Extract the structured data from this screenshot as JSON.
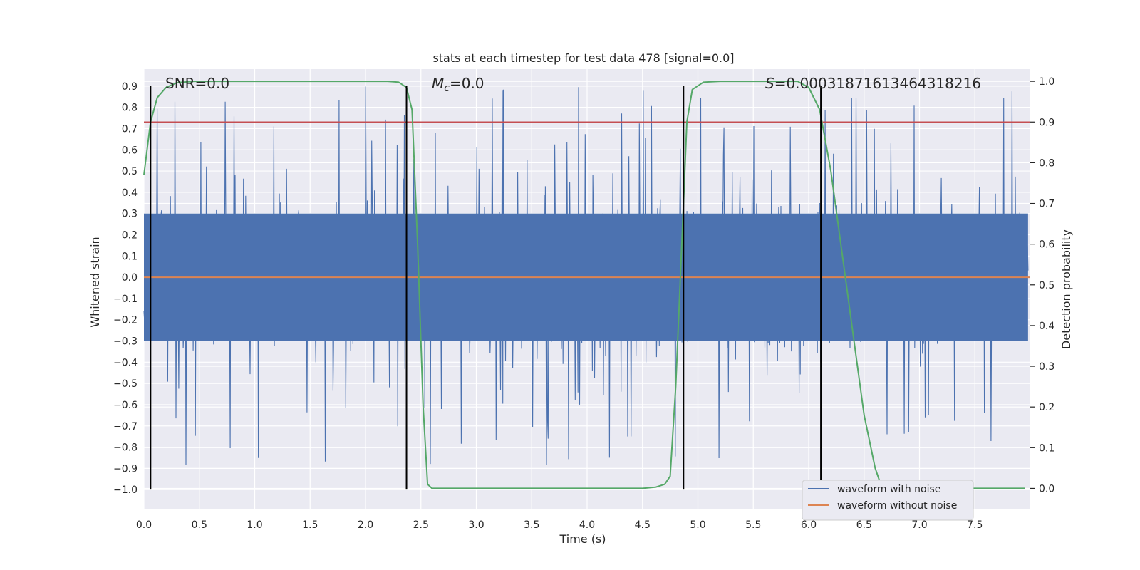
{
  "chart_data": {
    "type": "line",
    "title": "stats at each timestep for test data 478 [signal=0.0]",
    "xlabel": "Time (s)",
    "ylabel": "Whitened strain",
    "ylabel_right": "Detection probability",
    "xlim": [
      0.0,
      8.0
    ],
    "ylim": [
      -1.09,
      0.98
    ],
    "ylim_right": [
      -0.05,
      1.03
    ],
    "x_ticks": [
      0.0,
      0.5,
      1.0,
      1.5,
      2.0,
      2.5,
      3.0,
      3.5,
      4.0,
      4.5,
      5.0,
      5.5,
      6.0,
      6.5,
      7.0,
      7.5
    ],
    "x_tick_labels": [
      "0.0",
      "0.5",
      "1.0",
      "1.5",
      "2.0",
      "2.5",
      "3.0",
      "3.5",
      "4.0",
      "4.5",
      "5.0",
      "5.5",
      "6.0",
      "6.5",
      "7.0",
      "7.5"
    ],
    "y_ticks": [
      0.9,
      0.8,
      0.7,
      0.6,
      0.5,
      0.4,
      0.3,
      0.2,
      0.1,
      0.0,
      -0.1,
      -0.2,
      -0.3,
      -0.4,
      -0.5,
      -0.6,
      -0.7,
      -0.8,
      -0.9,
      -1.0
    ],
    "y_tick_labels": [
      "0.9",
      "0.8",
      "0.7",
      "0.6",
      "0.5",
      "0.4",
      "0.3",
      "0.2",
      "0.1",
      "0.0",
      "−0.1",
      "−0.2",
      "−0.3",
      "−0.4",
      "−0.5",
      "−0.6",
      "−0.7",
      "−0.8",
      "−0.9",
      "−1.0"
    ],
    "y_ticks_right": [
      1.0,
      0.9,
      0.8,
      0.7,
      0.6,
      0.5,
      0.4,
      0.3,
      0.2,
      0.1,
      0.0
    ],
    "y_tick_labels_right": [
      "1.0",
      "0.9",
      "0.8",
      "0.7",
      "0.6",
      "0.5",
      "0.4",
      "0.3",
      "0.2",
      "0.1",
      "0.0"
    ],
    "series": [
      {
        "name": "waveform with noise",
        "color": "#4c72b0",
        "description": "dense whitened noise, amplitude roughly ±0.3 body with spikes up to 0.9 and down to -1.0",
        "body_amplitude": 0.3,
        "peak_max": 0.9,
        "peak_min": -1.0
      },
      {
        "name": "waveform without noise",
        "color": "#dd8452",
        "x": [
          0.0,
          8.0
        ],
        "y": [
          0.0,
          0.0
        ]
      },
      {
        "name": "detection probability",
        "axis": "right",
        "color": "#55a868",
        "x": [
          0.0,
          0.06,
          0.12,
          0.2,
          0.3,
          0.45,
          0.6,
          2.2,
          2.3,
          2.37,
          2.42,
          2.47,
          2.52,
          2.56,
          2.6,
          2.65,
          2.7,
          4.5,
          4.62,
          4.7,
          4.75,
          4.8,
          4.87,
          4.9,
          4.95,
          5.05,
          5.2,
          5.9,
          6.0,
          6.1,
          6.2,
          6.3,
          6.4,
          6.5,
          6.6,
          6.65,
          6.7,
          7.95
        ],
        "y": [
          0.77,
          0.9,
          0.96,
          0.985,
          0.997,
          1.0,
          1.0,
          1.0,
          0.998,
          0.985,
          0.93,
          0.6,
          0.2,
          0.01,
          0.0,
          0.0,
          0.0,
          0.0,
          0.003,
          0.01,
          0.03,
          0.25,
          0.7,
          0.9,
          0.98,
          0.998,
          1.0,
          1.0,
          0.985,
          0.93,
          0.78,
          0.58,
          0.38,
          0.18,
          0.05,
          0.01,
          0.0,
          0.0
        ]
      }
    ],
    "threshold": {
      "value": 0.9,
      "axis": "right",
      "color": "#c44e52"
    },
    "vertical_lines": [
      0.06,
      2.37,
      4.87,
      6.11
    ],
    "vline_ymin": -1.0,
    "vline_ymax": 0.9,
    "annotations": {
      "snr": "SNR=0.0",
      "mc_symbol": "M",
      "mc_sub": "c",
      "mc_value": "=0.0",
      "s_symbol": "S",
      "s_value": "=0.00031871613464318216"
    },
    "legend": {
      "placement": "lower-right",
      "entries": [
        {
          "label": "waveform with noise",
          "color": "#4c72b0"
        },
        {
          "label": "waveform without noise",
          "color": "#dd8452"
        }
      ]
    },
    "style": {
      "plot_bg": "#eaeaf2",
      "grid_color": "#ffffff",
      "grid": true
    }
  }
}
